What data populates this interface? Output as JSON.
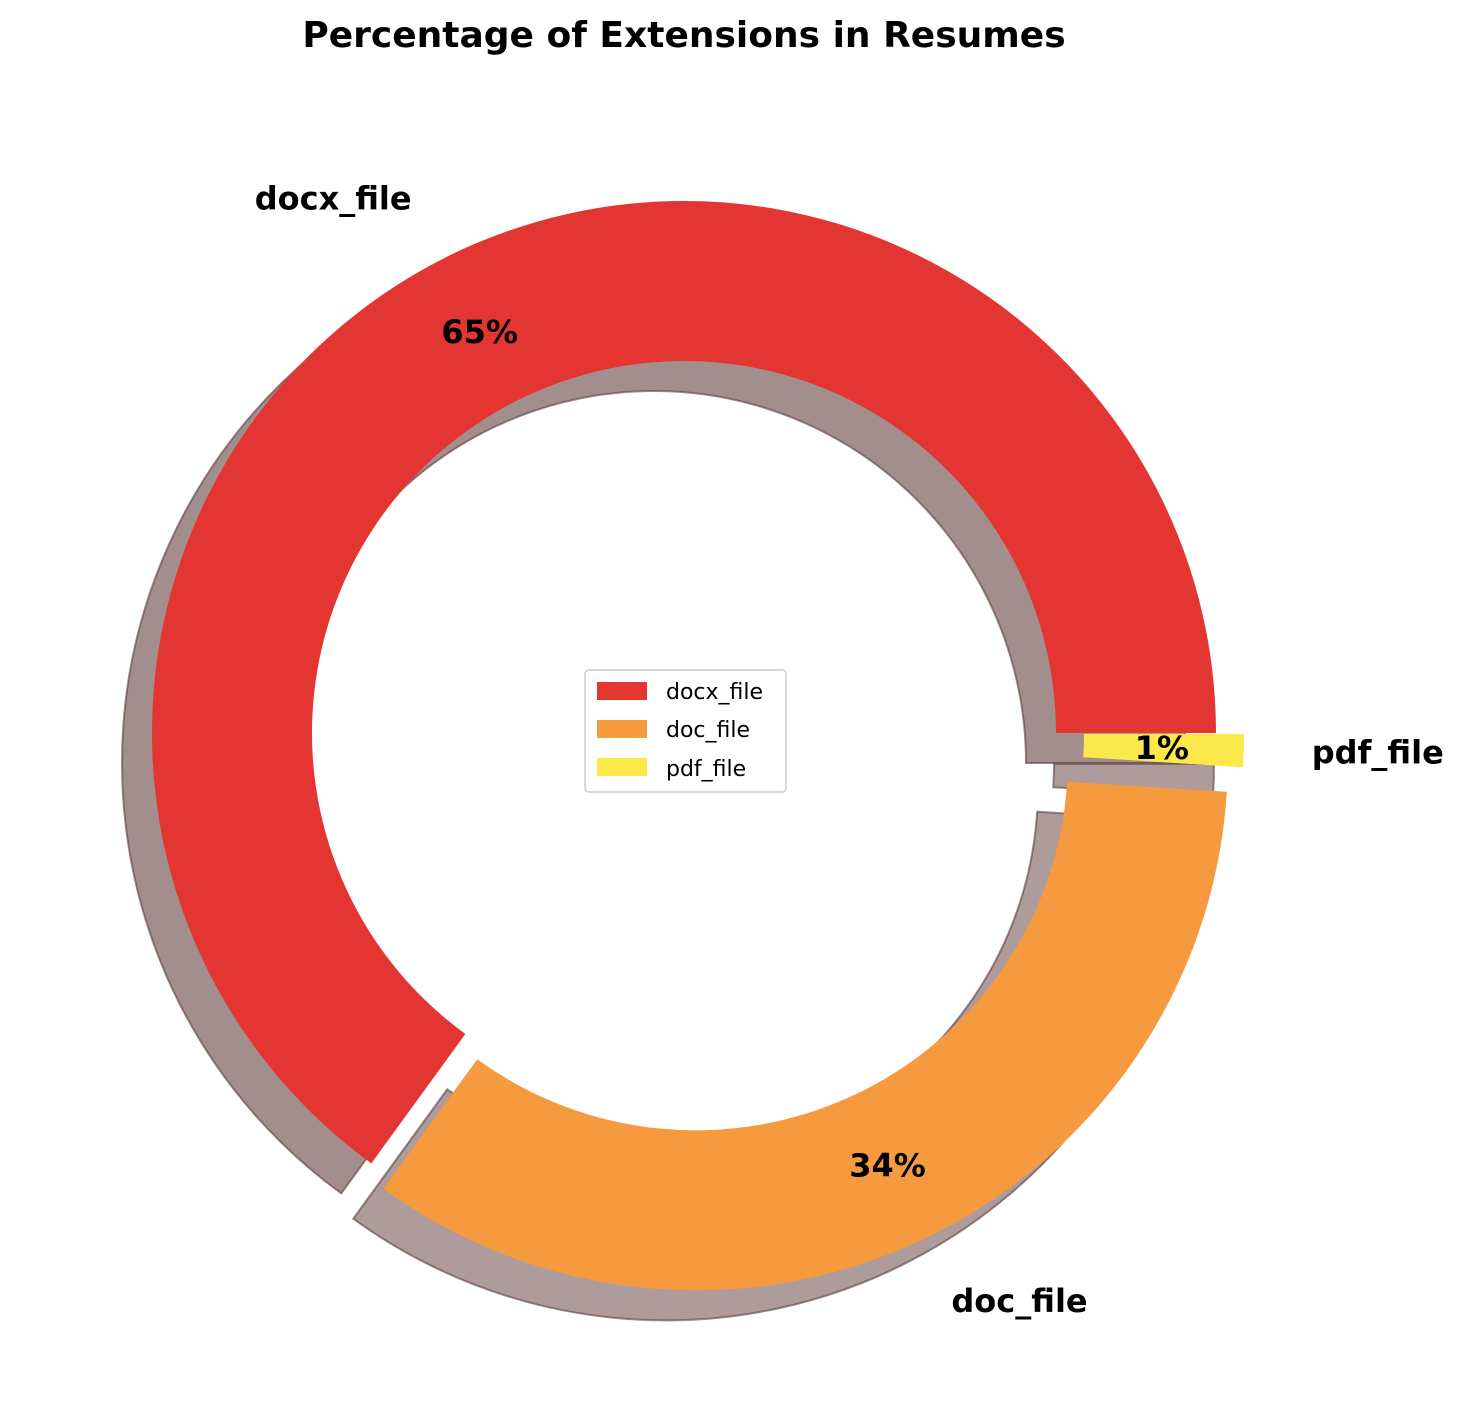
{
  "chart_data": {
    "type": "pie",
    "style": "donut",
    "title": "Percentage of Extensions in Resumes",
    "categories": [
      "docx_file",
      "doc_file",
      "pdf_file"
    ],
    "values": [
      65,
      34,
      1
    ],
    "labels": [
      "65%",
      "34%",
      "1%"
    ],
    "colors": [
      "#e33532",
      "#f59a3f",
      "#fbe94b"
    ],
    "shadow": true,
    "exploded": [
      false,
      true,
      true
    ],
    "start_angle_deg": 0,
    "direction": "counterclockwise",
    "legend": {
      "placement": "center",
      "entries": [
        "docx_file",
        "doc_file",
        "pdf_file"
      ]
    }
  }
}
